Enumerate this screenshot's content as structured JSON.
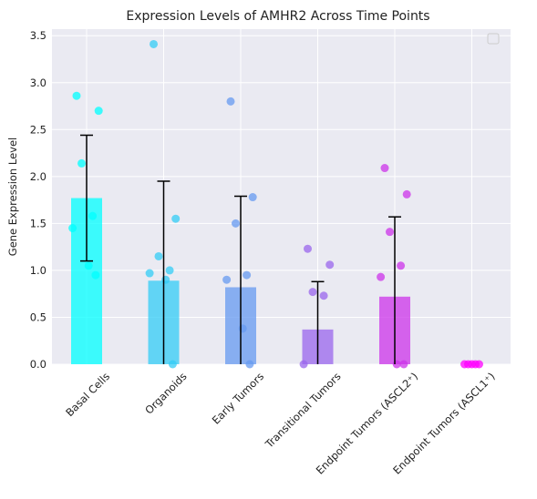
{
  "chart_data": {
    "type": "bar",
    "title": "Expression Levels of AMHR2 Across Time Points",
    "xlabel": "",
    "ylabel": "Gene Expression Level",
    "ylim": [
      0,
      3.57
    ],
    "yticks": [
      "0.0",
      "0.5",
      "1.0",
      "1.5",
      "2.0",
      "2.5",
      "3.0",
      "3.5"
    ],
    "grid": true,
    "legend": "top-right, empty",
    "categories": [
      "Basal Cells",
      "Organoids",
      "Early Tumors",
      "Transitional Tumors",
      "Endpoint Tumors (ASCL2⁺)",
      "Endpoint Tumors (ASCL1⁺)"
    ],
    "values": [
      1.77,
      0.89,
      0.82,
      0.37,
      0.72,
      0.0
    ],
    "error": [
      0.67,
      1.06,
      0.97,
      0.51,
      0.85,
      0.0
    ],
    "colors": [
      "#00ffff",
      "#33ccf5",
      "#6699f0",
      "#9966ec",
      "#cc33ea",
      "#ff00ff"
    ],
    "points": [
      [
        2.86,
        2.7,
        2.14,
        1.58,
        1.45,
        1.05,
        0.95
      ],
      [
        3.41,
        1.55,
        1.15,
        1.0,
        0.97,
        0.9,
        0.0
      ],
      [
        2.8,
        1.78,
        1.5,
        0.95,
        0.9,
        0.38,
        0.0
      ],
      [
        1.23,
        1.06,
        0.77,
        0.73,
        0.0
      ],
      [
        2.09,
        1.81,
        1.41,
        1.05,
        0.93,
        0.0,
        0.0
      ],
      [
        0.0,
        0.0,
        0.0,
        0.0,
        0.0
      ]
    ]
  }
}
